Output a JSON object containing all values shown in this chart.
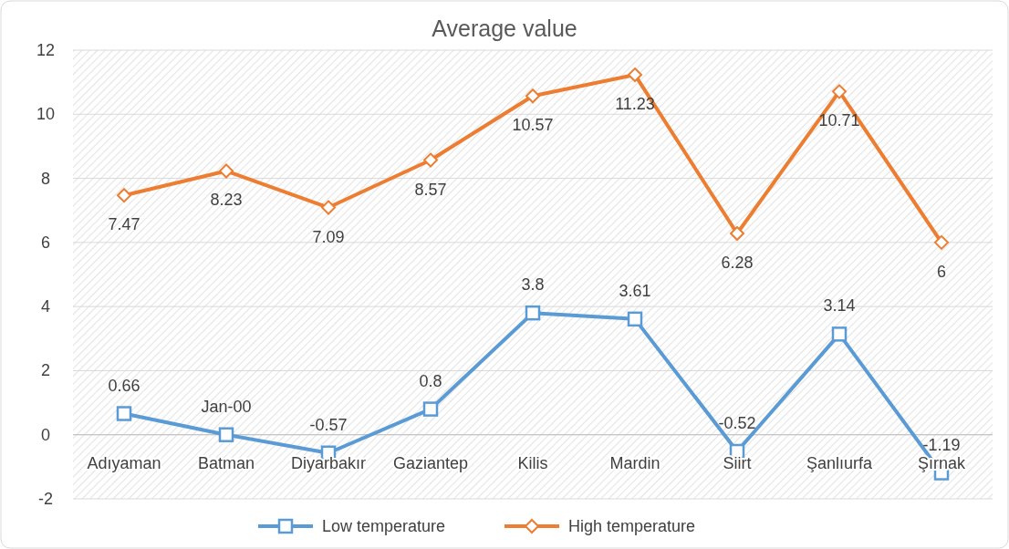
{
  "chart_data": {
    "type": "line",
    "title": "Average value",
    "categories": [
      "Adıyaman",
      "Batman",
      "Diyarbakır",
      "Gaziantep",
      "Kilis",
      "Mardin",
      "Siirt",
      "Şanlıurfa",
      "Şırnak"
    ],
    "series": [
      {
        "name": "Low temperature",
        "color": "#5b9bd5",
        "marker": "square",
        "values": [
          0.66,
          0,
          -0.57,
          0.8,
          3.8,
          3.61,
          -0.52,
          3.14,
          -1.19
        ],
        "value_labels": [
          "0.66",
          "Jan-00",
          "-0.57",
          "0.8",
          "3.8",
          "3.61",
          "-0.52",
          "3.14",
          "-1.19"
        ]
      },
      {
        "name": "High temperature",
        "color": "#ed7d31",
        "marker": "diamond",
        "values": [
          7.47,
          8.23,
          7.09,
          8.57,
          10.57,
          11.23,
          6.28,
          10.71,
          6
        ],
        "value_labels": [
          "7.47",
          "8.23",
          "7.09",
          "8.57",
          "10.57",
          "11.23",
          "6.28",
          "10.71",
          "6"
        ]
      }
    ],
    "ylim": [
      -2,
      12
    ],
    "yticks": [
      -2,
      0,
      2,
      4,
      6,
      8,
      10,
      12
    ],
    "grid": "y",
    "legend": "bottom"
  }
}
